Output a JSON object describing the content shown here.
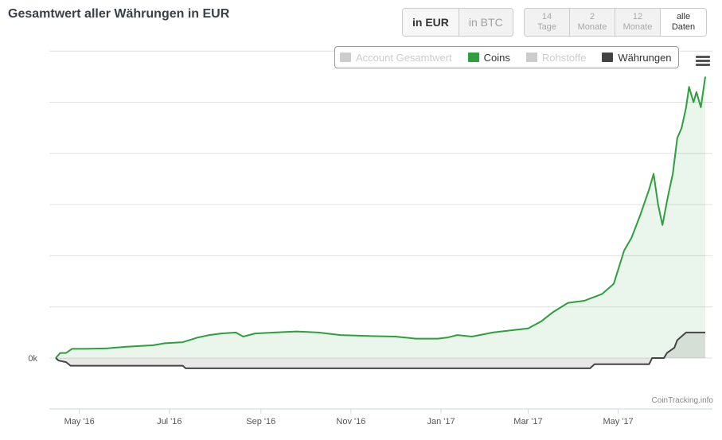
{
  "header": {
    "title": "Gesamtwert aller Währungen in EUR"
  },
  "currency_buttons": [
    {
      "label": "in EUR",
      "active": true
    },
    {
      "label": "in BTC",
      "active": false
    }
  ],
  "range_buttons": [
    {
      "line1": "14",
      "line2": "Tage",
      "active": false
    },
    {
      "line1": "2",
      "line2": "Monate",
      "active": false
    },
    {
      "line1": "12",
      "line2": "Monate",
      "active": false
    },
    {
      "line1": "alle",
      "line2": "Daten",
      "active": true
    }
  ],
  "legend": [
    {
      "label": "Account Gesamtwert",
      "color": "#cccccc",
      "visible": false
    },
    {
      "label": "Coins",
      "color": "#2e9e3e",
      "visible": true
    },
    {
      "label": "Rohstoffe",
      "color": "#cccccc",
      "visible": false
    },
    {
      "label": "Währungen",
      "color": "#444444",
      "visible": true
    }
  ],
  "credits": "CoinTracking.info",
  "chart_data": {
    "type": "area",
    "x_ticks": [
      "May '16",
      "Jul '16",
      "Sep '16",
      "Nov '16",
      "Jan '17",
      "Mar '17",
      "May '17"
    ],
    "y_ticks": [
      "0k"
    ],
    "grid": true,
    "legend_position": "top-right",
    "series": [
      {
        "name": "Coins",
        "color": "#2e9e3e",
        "points": [
          [
            "2016-04-15",
            0
          ],
          [
            "2016-04-18",
            0.1
          ],
          [
            "2016-04-22",
            0.1
          ],
          [
            "2016-04-26",
            0.18
          ],
          [
            "2016-05-05",
            0.18
          ],
          [
            "2016-05-20",
            0.19
          ],
          [
            "2016-06-01",
            0.22
          ],
          [
            "2016-06-20",
            0.25
          ],
          [
            "2016-06-28",
            0.29
          ],
          [
            "2016-07-10",
            0.31
          ],
          [
            "2016-07-20",
            0.4
          ],
          [
            "2016-07-28",
            0.45
          ],
          [
            "2016-08-05",
            0.48
          ],
          [
            "2016-08-15",
            0.5
          ],
          [
            "2016-08-20",
            0.42
          ],
          [
            "2016-08-28",
            0.48
          ],
          [
            "2016-09-10",
            0.5
          ],
          [
            "2016-09-25",
            0.52
          ],
          [
            "2016-10-10",
            0.5
          ],
          [
            "2016-10-25",
            0.45
          ],
          [
            "2016-11-15",
            0.43
          ],
          [
            "2016-12-01",
            0.42
          ],
          [
            "2016-12-15",
            0.38
          ],
          [
            "2016-12-30",
            0.38
          ],
          [
            "2017-01-05",
            0.4
          ],
          [
            "2017-01-12",
            0.45
          ],
          [
            "2017-01-22",
            0.42
          ],
          [
            "2017-02-05",
            0.5
          ],
          [
            "2017-02-20",
            0.55
          ],
          [
            "2017-03-01",
            0.58
          ],
          [
            "2017-03-10",
            0.72
          ],
          [
            "2017-03-18",
            0.9
          ],
          [
            "2017-03-28",
            1.08
          ],
          [
            "2017-04-08",
            1.12
          ],
          [
            "2017-04-20",
            1.25
          ],
          [
            "2017-04-28",
            1.45
          ],
          [
            "2017-05-05",
            2.1
          ],
          [
            "2017-05-10",
            2.35
          ],
          [
            "2017-05-16",
            2.8
          ],
          [
            "2017-05-22",
            3.3
          ],
          [
            "2017-05-25",
            3.6
          ],
          [
            "2017-05-28",
            3.0
          ],
          [
            "2017-05-31",
            2.6
          ],
          [
            "2017-06-04",
            3.2
          ],
          [
            "2017-06-07",
            3.6
          ],
          [
            "2017-06-10",
            4.3
          ],
          [
            "2017-06-13",
            4.5
          ],
          [
            "2017-06-16",
            4.9
          ],
          [
            "2017-06-18",
            5.3
          ],
          [
            "2017-06-21",
            5.0
          ],
          [
            "2017-06-23",
            5.2
          ],
          [
            "2017-06-26",
            4.9
          ],
          [
            "2017-06-29",
            5.5
          ]
        ]
      },
      {
        "name": "Währungen",
        "color": "#444444",
        "points": [
          [
            "2016-04-15",
            0
          ],
          [
            "2016-04-17",
            -0.05
          ],
          [
            "2016-04-22",
            -0.08
          ],
          [
            "2016-04-25",
            -0.15
          ],
          [
            "2016-07-10",
            -0.15
          ],
          [
            "2016-07-12",
            -0.2
          ],
          [
            "2017-04-12",
            -0.2
          ],
          [
            "2017-04-15",
            -0.12
          ],
          [
            "2017-05-22",
            -0.12
          ],
          [
            "2017-05-24",
            0.0
          ],
          [
            "2017-06-01",
            0.0
          ],
          [
            "2017-06-03",
            0.1
          ],
          [
            "2017-06-08",
            0.2
          ],
          [
            "2017-06-10",
            0.35
          ],
          [
            "2017-06-16",
            0.5
          ],
          [
            "2017-06-29",
            0.5
          ]
        ]
      }
    ]
  }
}
